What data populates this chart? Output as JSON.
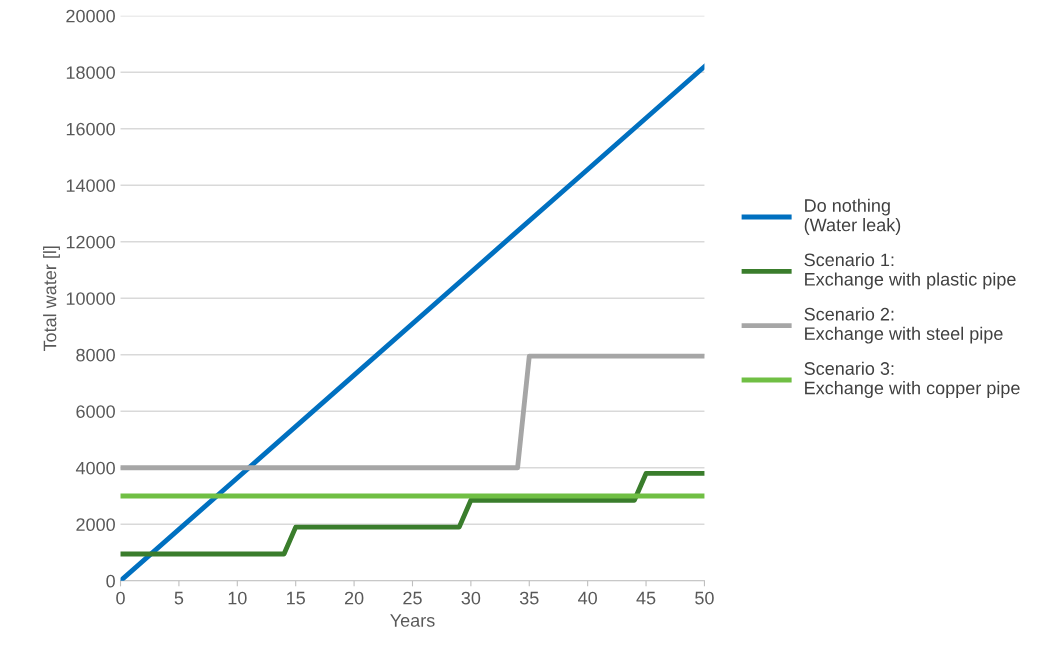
{
  "chart_data": {
    "type": "line",
    "xlabel": "Years",
    "ylabel": "Total water [l]",
    "xlim": [
      0,
      50
    ],
    "xticks": [
      0,
      5,
      10,
      15,
      20,
      25,
      30,
      35,
      40,
      45,
      50
    ],
    "ylim": [
      0,
      20000
    ],
    "yticks": [
      0,
      2000,
      4000,
      6000,
      8000,
      10000,
      12000,
      14000,
      16000,
      18000,
      20000
    ],
    "grid": "y",
    "legend": "right",
    "marker": "none",
    "line_style": "solid",
    "series": [
      {
        "name": "Do nothing\n(Water leak)",
        "color": "#0070c0",
        "x": [
          0,
          10,
          20,
          30,
          40,
          50
        ],
        "values": [
          0,
          3640,
          7280,
          10920,
          14560,
          18200
        ]
      },
      {
        "name": "Scenario 1:\nExchange with plastic pipe",
        "color": "#3a7d2c",
        "x": [
          0,
          14,
          15,
          29,
          30,
          44,
          45,
          50
        ],
        "values": [
          950,
          950,
          1900,
          1900,
          2850,
          2850,
          3800,
          3800
        ]
      },
      {
        "name": "Scenario 2:\nExchange with steel pipe",
        "color": "#a6a6a6",
        "x": [
          0,
          34,
          35,
          50
        ],
        "values": [
          4000,
          4000,
          7950,
          7950
        ]
      },
      {
        "name": "Scenario 3:\nExchange with copper pipe",
        "color": "#70bf44",
        "x": [
          0,
          50
        ],
        "values": [
          3000,
          3000
        ]
      }
    ]
  }
}
